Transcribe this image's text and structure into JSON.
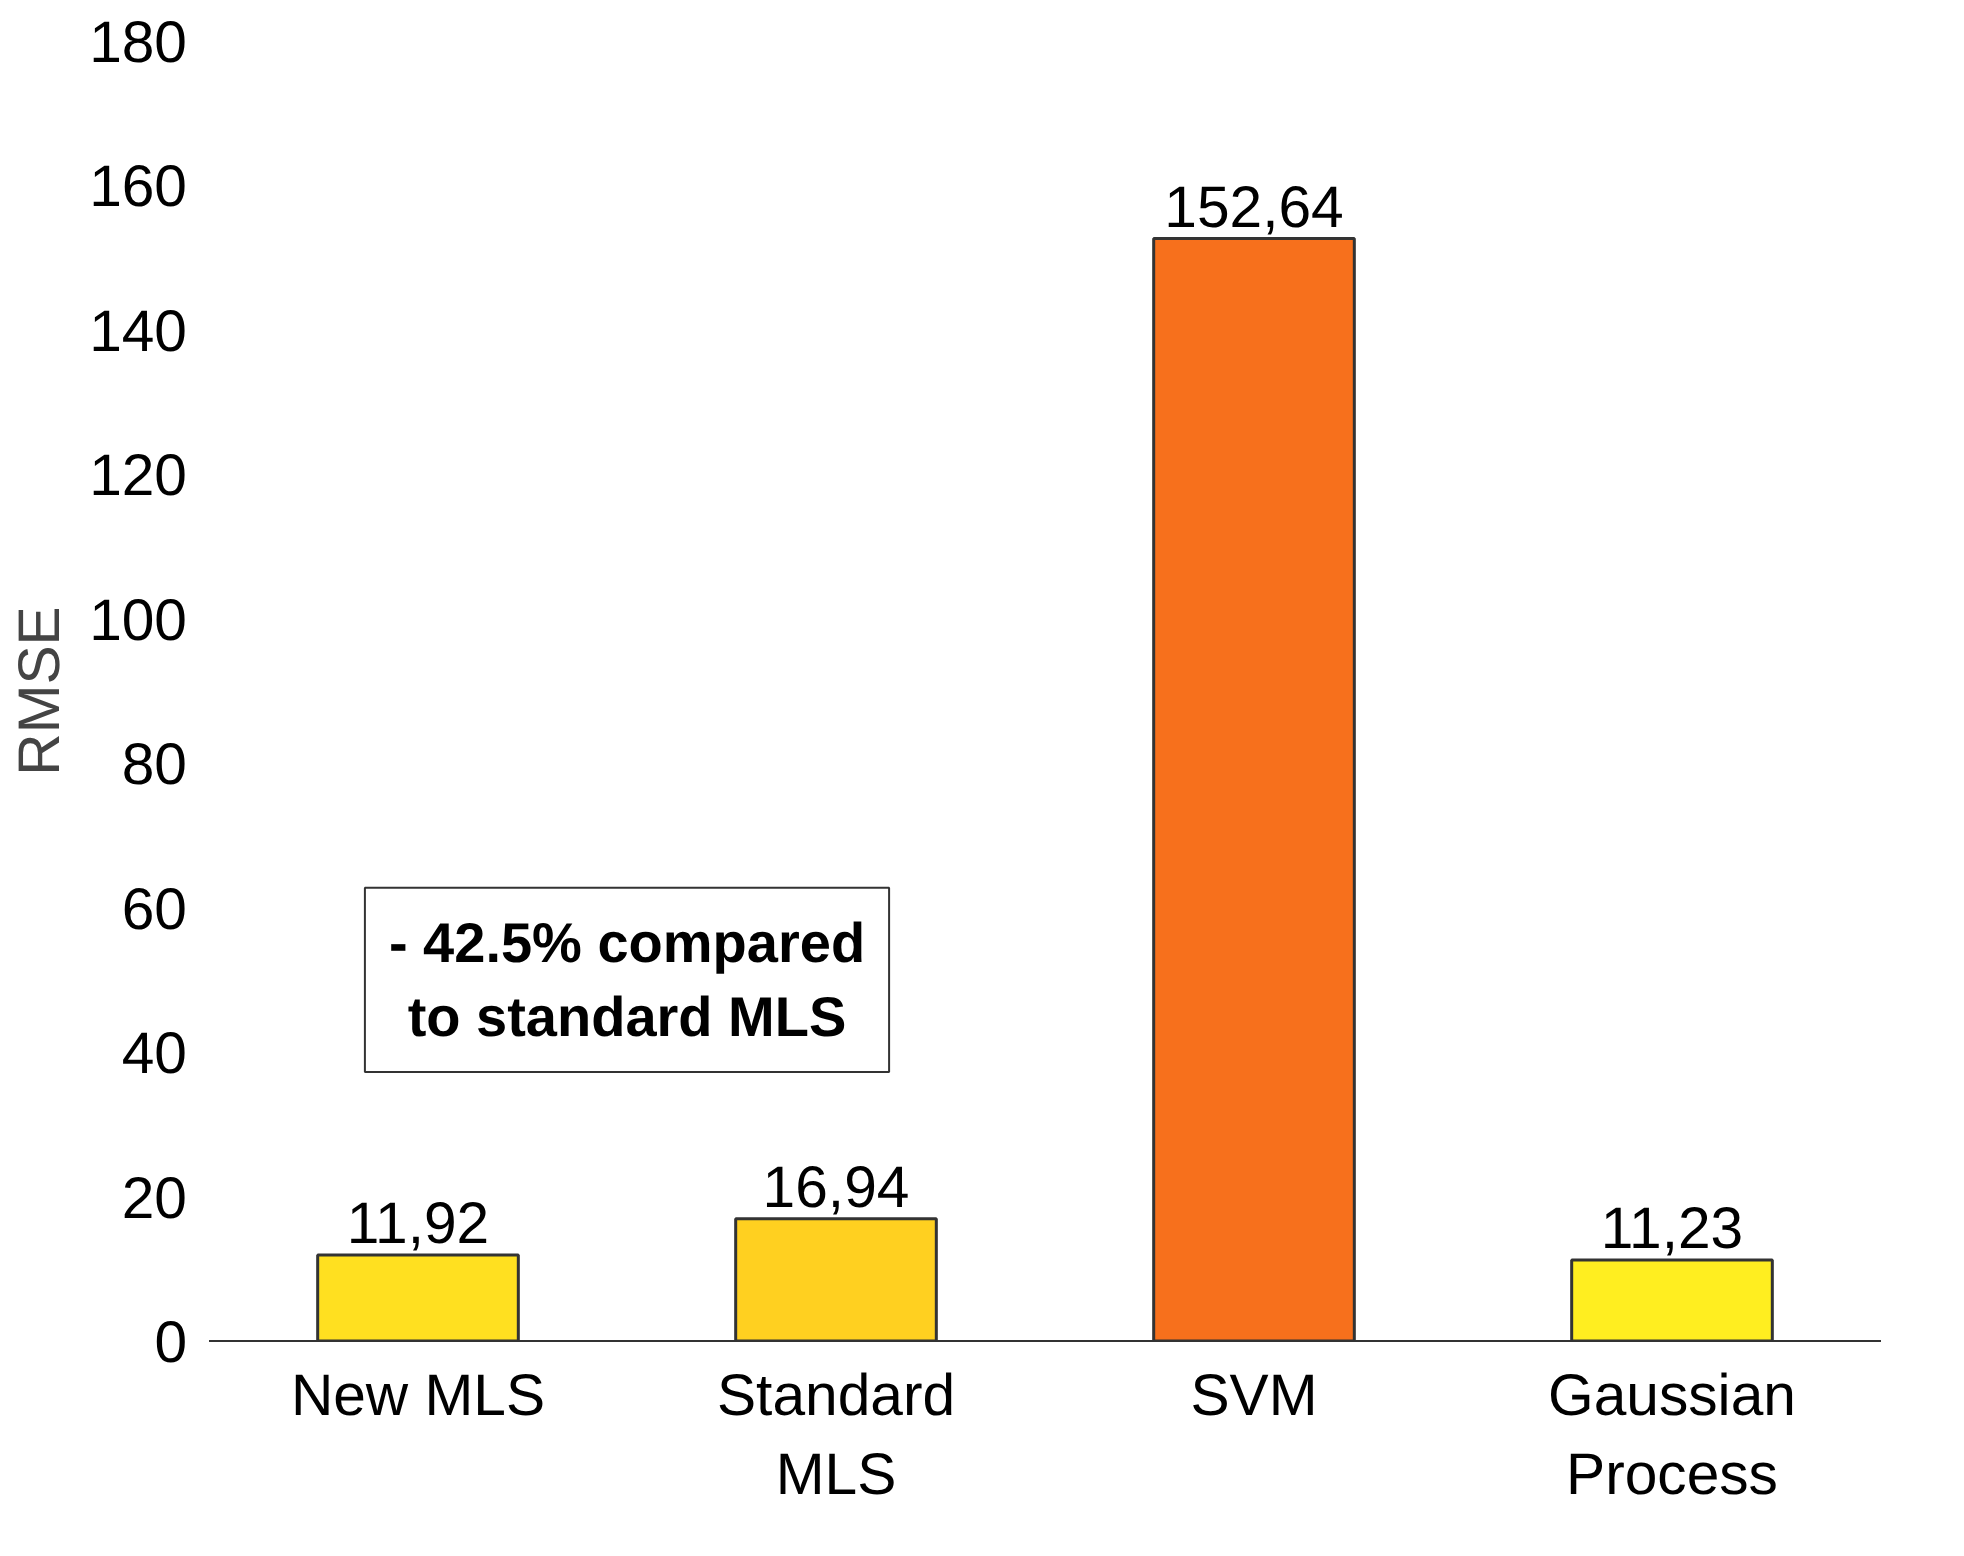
{
  "chart_data": {
    "type": "bar",
    "ylabel": "RMSE",
    "categories": [
      "New MLS",
      "Standard MLS",
      "SVM",
      "Gaussian Process"
    ],
    "values": [
      11.92,
      16.94,
      152.64,
      11.23
    ],
    "value_labels": [
      "11,92",
      "16,94",
      "152,64",
      "11,23"
    ],
    "colors": [
      "#ffe020",
      "#ffd020",
      "#f7701c",
      "#ffee20"
    ],
    "ylim": [
      0,
      180
    ],
    "yticks": [
      0,
      20,
      40,
      60,
      80,
      100,
      120,
      140,
      160,
      180
    ],
    "grid": false,
    "annotations": [
      "- 42.5% compared\nto standard MLS"
    ]
  }
}
